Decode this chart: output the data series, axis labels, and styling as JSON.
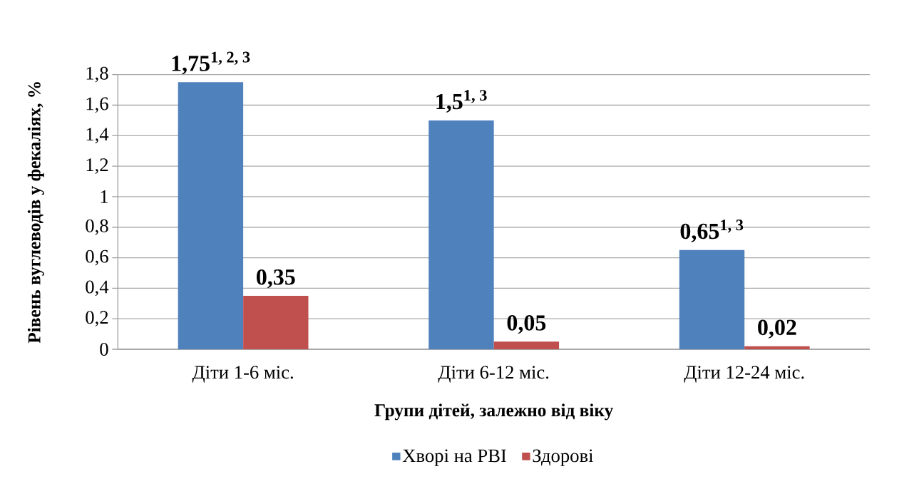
{
  "chart_data": {
    "type": "bar",
    "xlabel": "Групи дітей, залежно від віку",
    "ylabel": "Рівень вуглеводів у фекаліях, %",
    "categories": [
      "Діти 1-6 міс.",
      "Діти 6-12 міс.",
      "Діти 12-24 міс."
    ],
    "series": [
      {
        "name": "Хворі на РВІ",
        "color": "#4f81bd",
        "values": [
          1.75,
          1.5,
          0.65
        ],
        "value_labels": [
          "1,75$^{1, 2, 3}$",
          "1,5$^{1, 3}$",
          "0,65$^{1, 3}$"
        ]
      },
      {
        "name": "Здорові",
        "color": "#c0504d",
        "values": [
          0.35,
          0.05,
          0.02
        ],
        "value_labels": [
          "0,35",
          "0,05",
          "0,02"
        ]
      }
    ],
    "ylim": [
      0,
      1.8
    ],
    "yticks": [
      0,
      {
        "value": 0.2,
        "label": "0,2"
      },
      {
        "value": 0.4,
        "label": "0,4"
      },
      {
        "value": 0.6,
        "label": "0,6"
      },
      {
        "value": 0.8,
        "label": "0,8"
      },
      1,
      {
        "value": 1.2,
        "label": "1,2"
      },
      {
        "value": 1.4,
        "label": "1,4"
      },
      {
        "value": 1.6,
        "label": "1,6"
      },
      {
        "value": 1.8,
        "label": "1,8"
      }
    ],
    "grid": "y",
    "legend": "bottom"
  }
}
